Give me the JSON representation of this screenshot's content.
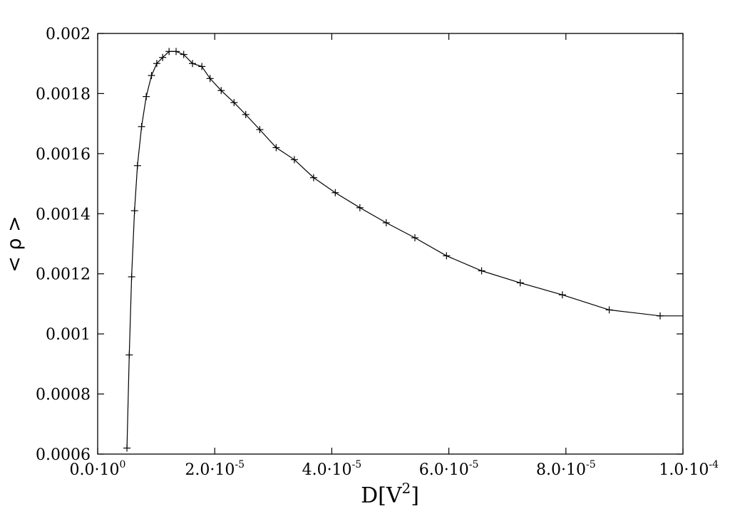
{
  "chart_data": {
    "type": "line",
    "title": "",
    "xlabel": "D[V2]",
    "xlabel_parts": {
      "base": "D[V",
      "sup": "2",
      "close": "]"
    },
    "ylabel": "< ρ >",
    "xlim": [
      0,
      0.0001
    ],
    "ylim": [
      0.0006,
      0.002
    ],
    "grid": false,
    "legend": "none",
    "line_color": "#000000",
    "marker": "plus",
    "x_ticks": [
      {
        "mantissa": "0.0·10",
        "exponent": "0"
      },
      {
        "mantissa": "2.0·10",
        "exponent": "-5"
      },
      {
        "mantissa": "4.0·10",
        "exponent": "-5"
      },
      {
        "mantissa": "6.0·10",
        "exponent": "-5"
      },
      {
        "mantissa": "8.0·10",
        "exponent": "-5"
      },
      {
        "mantissa": "1.0·10",
        "exponent": "-4"
      }
    ],
    "y_ticks": [
      "0.0006",
      "0.0008",
      "0.001",
      "0.0012",
      "0.0014",
      "0.0016",
      "0.0018",
      "0.002"
    ],
    "series": [
      {
        "x": [
          5e-06,
          5.4e-06,
          5.8e-06,
          6.3e-06,
          6.8e-06,
          7.5e-06,
          8.3e-06,
          9.2e-06,
          1.01e-05,
          1.11e-05,
          1.22e-05,
          1.34e-05,
          1.47e-05,
          1.62e-05,
          1.78e-05,
          1.92e-05,
          2.11e-05,
          2.33e-05,
          2.53e-05,
          2.77e-05,
          3.05e-05,
          3.36e-05,
          3.69e-05,
          4.06e-05,
          4.48e-05,
          4.93e-05,
          5.42e-05,
          5.96e-05,
          6.56e-05,
          7.22e-05,
          7.94e-05,
          8.74e-05,
          9.61e-05,
          0.0001
        ],
        "y": [
          0.00062,
          0.00093,
          0.00119,
          0.00141,
          0.00156,
          0.00169,
          0.00179,
          0.00186,
          0.0019,
          0.00192,
          0.00194,
          0.00194,
          0.00193,
          0.0019,
          0.00189,
          0.00185,
          0.00181,
          0.00177,
          0.00173,
          0.00168,
          0.00162,
          0.00158,
          0.00152,
          0.00147,
          0.00142,
          0.00137,
          0.00132,
          0.00126,
          0.00121,
          0.00117,
          0.00113,
          0.00108,
          0.00106,
          0.00106
        ]
      }
    ]
  }
}
